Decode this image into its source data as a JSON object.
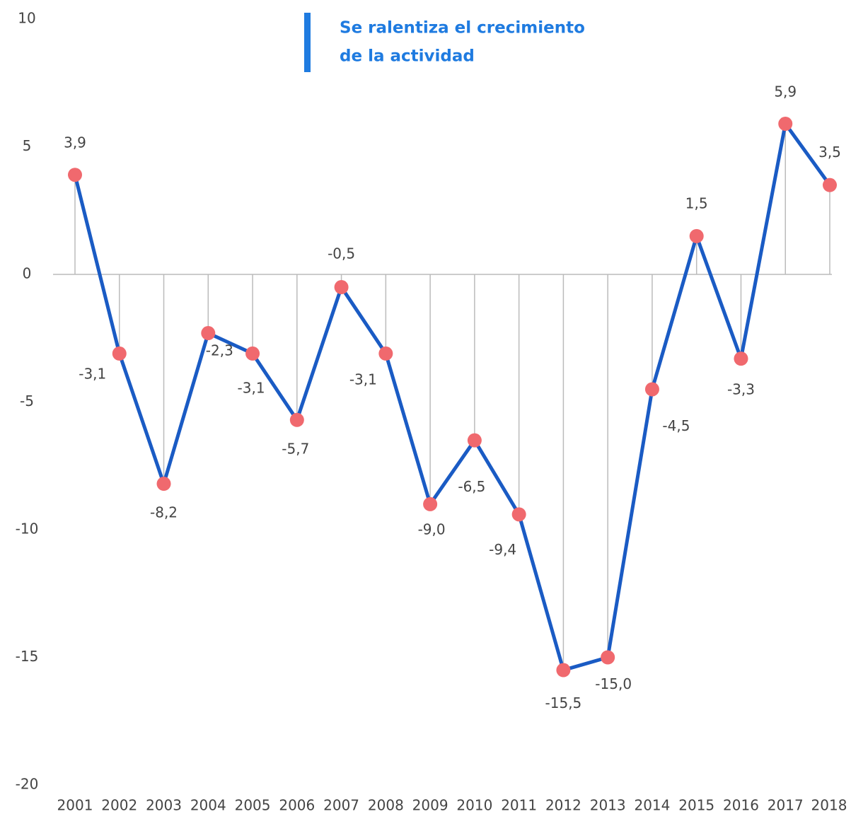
{
  "chart_data": {
    "type": "line",
    "title": [
      "Se ralentiza el crecimiento",
      "de la actividad"
    ],
    "categories": [
      "2001",
      "2002",
      "2003",
      "2004",
      "2005",
      "2006",
      "2007",
      "2008",
      "2009",
      "2010",
      "2011",
      "2012",
      "2013",
      "2014",
      "2015",
      "2016",
      "2017",
      "2018"
    ],
    "series": [
      {
        "color": "#1a5bc4",
        "marker_color": "#f0696e",
        "values": [
          3.9,
          -3.1,
          -8.2,
          -2.3,
          -3.1,
          -5.7,
          -0.5,
          -3.1,
          -9.0,
          -6.5,
          -9.4,
          -15.5,
          -15.0,
          -4.5,
          1.5,
          -3.3,
          5.9,
          3.5
        ],
        "value_labels": [
          "3,9",
          "-3,1",
          "-8,2",
          "-2,3",
          "-3,1",
          "-5,7",
          "-0,5",
          "-3,1",
          "-9,0",
          "-6,5",
          "-9,4",
          "-15,5",
          "-15,0",
          "-4,5",
          "1,5",
          "-3,3",
          "5,9",
          "3,5"
        ]
      }
    ],
    "ylim": [
      -20,
      10
    ],
    "yticks": [
      10,
      5,
      0,
      -5,
      -10,
      -15,
      -20
    ],
    "grid": false
  }
}
